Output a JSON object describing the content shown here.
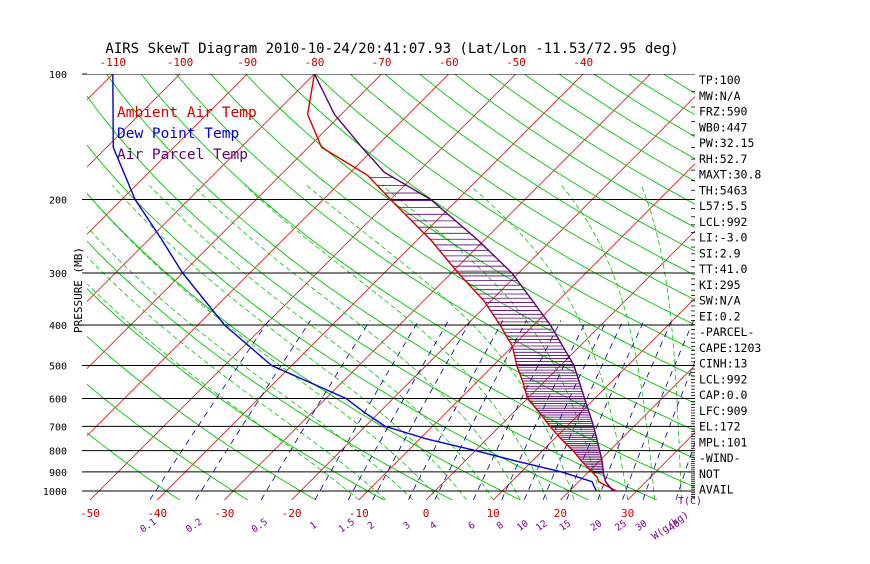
{
  "chart_data": {
    "type": "line",
    "chart_kind": "skew-t log-p diagram",
    "title": "AIRS SkewT Diagram 2010-10-24/20:41:07.93 (Lat/Lon -11.53/72.95 deg)",
    "ylabel": "PRESSURE (MB)",
    "xlabel": "T(C)",
    "mixing_ratio_label": "W(g/kg)",
    "y_scale": "log",
    "ylim": [
      1050,
      100
    ],
    "pressure_ticks": [
      100,
      200,
      300,
      400,
      500,
      600,
      700,
      800,
      900,
      1000
    ],
    "pressure_tick_labels": [
      "100",
      "200",
      "300",
      "400",
      "500",
      "600",
      "700",
      "800",
      "900",
      "1000"
    ],
    "bottom_temp_ticks": [
      -50,
      -40,
      -30,
      -20,
      -10,
      0,
      10,
      20,
      30
    ],
    "bottom_temp_labels": [
      "-50",
      "-40",
      "-30",
      "-20",
      "-10",
      "0",
      "10",
      "20",
      "30"
    ],
    "top_temp_ticks": [
      -120,
      -110,
      -100,
      -90,
      -80,
      -70,
      -60,
      -50,
      -40
    ],
    "top_temp_labels": [
      "-120",
      "-110",
      "-100",
      "-90",
      "-80",
      "-70",
      "-60",
      "-50",
      "-40"
    ],
    "mixing_ratio_ticks": [
      0.1,
      0.2,
      0.5,
      1,
      1.5,
      2,
      3,
      4,
      6,
      8,
      10,
      12,
      15,
      20,
      25,
      30,
      40
    ],
    "mixing_ratio_labels": [
      "0.1",
      "0.2",
      "0.5",
      "1",
      "1.5",
      "2",
      "3",
      "4",
      "6",
      "8",
      "10",
      "12",
      "15",
      "20",
      "25",
      "30",
      "40"
    ],
    "legend_position": "top-left",
    "series": [
      {
        "name": "Ambient Air Temp",
        "color": "#d40000",
        "pressure": [
          1000,
          950,
          925,
          900,
          850,
          800,
          750,
          700,
          650,
          600,
          550,
          500,
          450,
          400,
          350,
          300,
          250,
          200,
          175,
          150,
          125,
          100
        ],
        "values": [
          27,
          23,
          22,
          20.5,
          17.5,
          14.5,
          11,
          7.5,
          4,
          0,
          -3,
          -6.5,
          -10,
          -15,
          -21,
          -29,
          -38,
          -50,
          -57,
          -68,
          -75,
          -80
        ]
      },
      {
        "name": "Dew Point Temp",
        "color": "#0000d4",
        "pressure": [
          1000,
          950,
          900,
          850,
          800,
          750,
          700,
          650,
          600,
          500,
          400,
          300,
          250,
          200,
          150,
          100
        ],
        "values": [
          24,
          22,
          16,
          8,
          0,
          -9,
          -17,
          -22,
          -27,
          -43,
          -56,
          -70,
          -78,
          -88,
          -99,
          -110
        ]
      },
      {
        "name": "Air Parcel Temp",
        "color": "#5a0070",
        "pressure": [
          1000,
          950,
          909,
          850,
          800,
          700,
          600,
          500,
          400,
          300,
          250,
          200,
          172,
          150,
          125,
          100
        ],
        "values": [
          26.5,
          24,
          22.5,
          20.5,
          18.5,
          14,
          8.5,
          2,
          -7.5,
          -21,
          -31,
          -44,
          -55,
          -62,
          -71,
          -80
        ]
      }
    ],
    "stability_indices": [
      "TP:100",
      "MW:N/A",
      "FRZ:590",
      "WB0:447",
      "PW:32.15",
      "RH:52.7",
      "MAXT:30.8",
      "TH:5463",
      "L57:5.5",
      "LCL:992",
      "LI:-3.0",
      "SI:2.9",
      "TT:41.0",
      "KI:295",
      "SW:N/A",
      "EI:0.2",
      "-PARCEL-",
      "CAPE:1203",
      "CINH:13",
      "LCL:992",
      "CAP:0.0",
      "LFC:909",
      "EL:172",
      "MPL:101",
      "-WIND-",
      "NOT",
      "AVAIL"
    ]
  },
  "colors": {
    "isotherm": "#e02020",
    "dry_adiabat": "#00c800",
    "moist_adiabat": "#00c800",
    "mixing_ratio": "#00008c",
    "text": "#000000",
    "tick_red": "#c80000",
    "tick_purple": "#7a0090"
  }
}
